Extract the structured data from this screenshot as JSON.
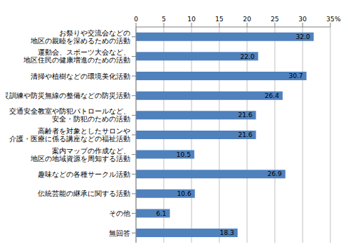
{
  "chart_data": {
    "type": "bar",
    "orientation": "horizontal",
    "x_label": "%",
    "categories": [
      "お祭りや交流会などの\n地区の親睦を深めるための活動",
      "運動会、スポーツ大会など、\n地区住民の健康増進のための活動",
      "清掃や植樹などの環境美化活動",
      "防災訓練や防災無線の整備などの防災活動",
      "交通安全教室や防犯パトロールなど、\n安全・防犯のための活動",
      "高齢者を対象としたサロンや\n介護・医療に係る講座などの福祉活動",
      "案内マップの作成など、\n地区の地域資源を周知する活動",
      "趣味などの各種サークル活動",
      "伝統芸能の継承に関する活動",
      "その他",
      "無回答"
    ],
    "values": [
      32.0,
      22.0,
      30.7,
      26.4,
      21.6,
      21.6,
      10.5,
      26.9,
      10.6,
      6.1,
      18.3
    ],
    "value_labels": [
      "32.0",
      "22.0",
      "30.7",
      "26.4",
      "21.6",
      "21.6",
      "10.5",
      "26.9",
      "10.6",
      "6.1",
      "18.3"
    ],
    "data_labels": true,
    "color": "#4f81bd",
    "xlim": [
      0,
      35
    ],
    "xticks": [
      0,
      5,
      10,
      15,
      20,
      25,
      30,
      35
    ],
    "grid": true
  }
}
